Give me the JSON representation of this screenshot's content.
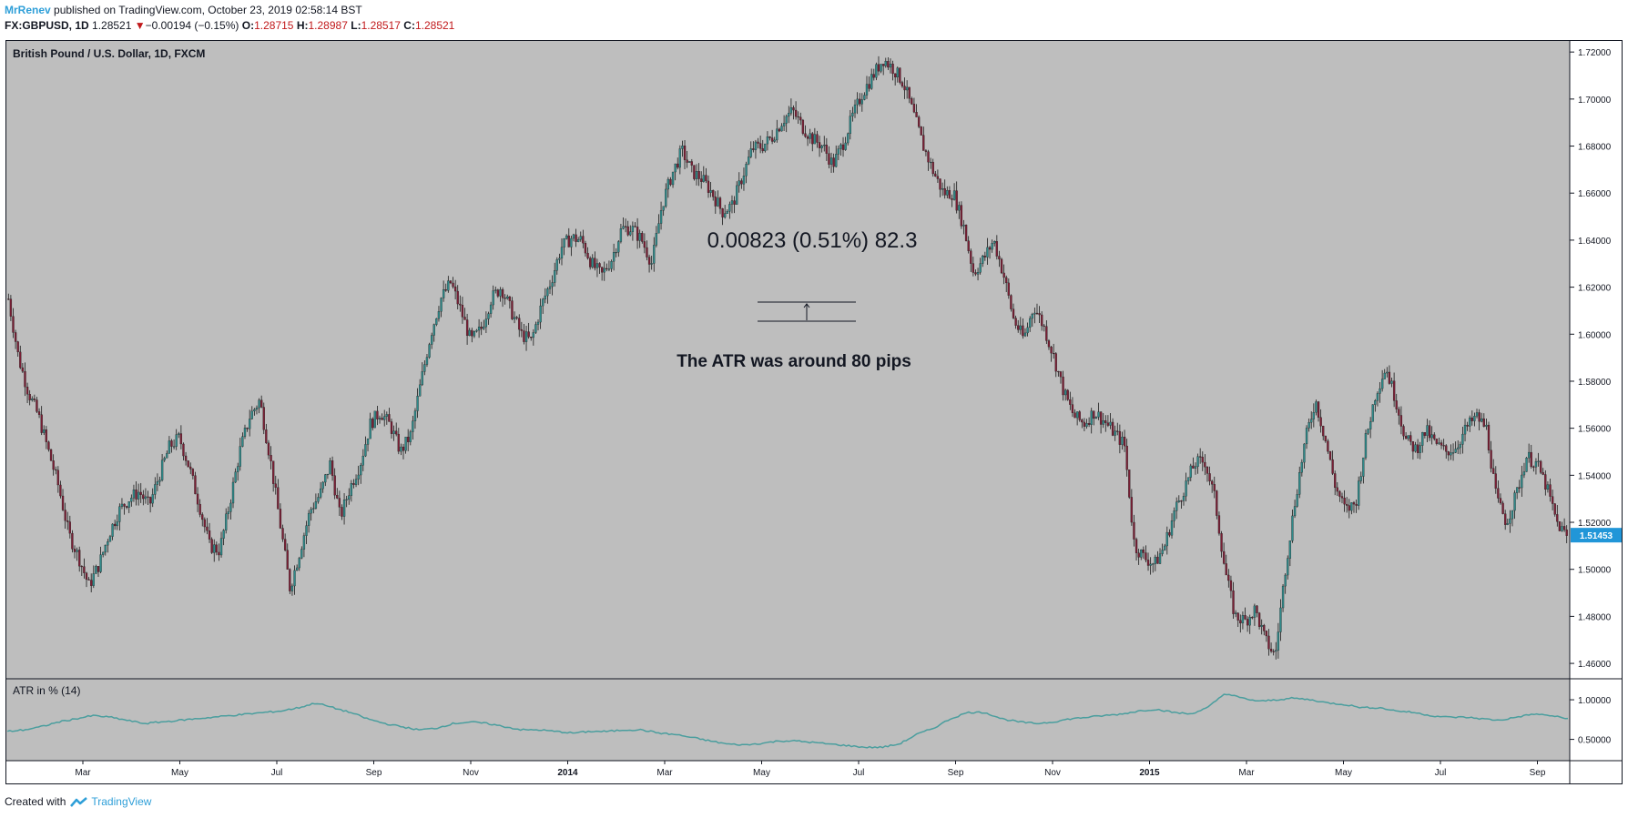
{
  "header": {
    "author": "MrRenev",
    "published": "published on TradingView.com, October 23, 2019 02:58:14 BST",
    "symbol": "FX:GBPUSD, 1D",
    "last": "1.28521",
    "change_arrow": "▼",
    "change": "−0.00194 (−0.15%)",
    "o_label": "O:",
    "o": "1.28715",
    "h_label": "H:",
    "h": "1.28987",
    "l_label": "L:",
    "l": "1.28517",
    "c_label": "C:",
    "c": "1.28521"
  },
  "footer": {
    "created_with": "Created with",
    "brand": "TradingView",
    "logo_icon": "tradingview-logo-icon"
  },
  "colors": {
    "pane_bg": "#bebebe",
    "up": "#2f8a8a",
    "down": "#7a1f35",
    "wick": "#1a1a1a",
    "atr": "#4a9e9e",
    "price_tag": "#2196d8"
  },
  "chart_data": [
    {
      "type": "candlestick",
      "title": "British Pound / U.S. Dollar, 1D, FXCM",
      "y_ticks": [
        "1.72000",
        "1.70000",
        "1.68000",
        "1.66000",
        "1.64000",
        "1.62000",
        "1.60000",
        "1.58000",
        "1.56000",
        "1.54000",
        "1.52000",
        "1.50000",
        "1.48000",
        "1.46000"
      ],
      "ylim": [
        1.455,
        1.722
      ],
      "last_price_label": "1.51453",
      "x_ticks": [
        "Mar",
        "May",
        "Jul",
        "Sep",
        "Nov",
        "2014",
        "Mar",
        "May",
        "Jul",
        "Sep",
        "Nov",
        "2015",
        "Mar",
        "May",
        "Jul",
        "Sep"
      ],
      "bold_ticks": [
        "2014",
        "2015"
      ],
      "series": [
        {
          "close": [
            1.615,
            1.59,
            1.575,
            1.565,
            1.55,
            1.535,
            1.515,
            1.505,
            1.493,
            1.502,
            1.515,
            1.525,
            1.53,
            1.533,
            1.527,
            1.54,
            1.552,
            1.556,
            1.543,
            1.527,
            1.51,
            1.508,
            1.528,
            1.55,
            1.565,
            1.572,
            1.548,
            1.52,
            1.492,
            1.508,
            1.525,
            1.532,
            1.545,
            1.522,
            1.535,
            1.545,
            1.562,
            1.567,
            1.561,
            1.55,
            1.557,
            1.579,
            1.6,
            1.615,
            1.622,
            1.61,
            1.597,
            1.602,
            1.615,
            1.62,
            1.61,
            1.6,
            1.597,
            1.612,
            1.623,
            1.637,
            1.641,
            1.64,
            1.63,
            1.625,
            1.632,
            1.645,
            1.645,
            1.64,
            1.63,
            1.655,
            1.668,
            1.678,
            1.669,
            1.666,
            1.66,
            1.652,
            1.655,
            1.667,
            1.679,
            1.68,
            1.684,
            1.691,
            1.695,
            1.688,
            1.683,
            1.68,
            1.672,
            1.681,
            1.693,
            1.703,
            1.71,
            1.717,
            1.713,
            1.707,
            1.694,
            1.68,
            1.669,
            1.66,
            1.66,
            1.646,
            1.626,
            1.632,
            1.64,
            1.625,
            1.606,
            1.598,
            1.612,
            1.603,
            1.59,
            1.575,
            1.565,
            1.562,
            1.567,
            1.563,
            1.558,
            1.553,
            1.51,
            1.505,
            1.502,
            1.51,
            1.525,
            1.535,
            1.545,
            1.546,
            1.53,
            1.5,
            1.48,
            1.478,
            1.483,
            1.47,
            1.463,
            1.5,
            1.53,
            1.555,
            1.572,
            1.555,
            1.535,
            1.525,
            1.528,
            1.555,
            1.575,
            1.586,
            1.572,
            1.555,
            1.551,
            1.559,
            1.553,
            1.55,
            1.552,
            1.56,
            1.565,
            1.56,
            1.53,
            1.52,
            1.532,
            1.548,
            1.545,
            1.535,
            1.52,
            1.514
          ]
        }
      ]
    },
    {
      "type": "line",
      "title": "ATR in % (14)",
      "y_ticks": [
        "1.00000",
        "0.50000"
      ],
      "ylim": [
        0.3,
        1.15
      ],
      "series": [
        {
          "name": "ATR in % (14)",
          "values": [
            0.6,
            0.62,
            0.66,
            0.72,
            0.76,
            0.8,
            0.78,
            0.74,
            0.7,
            0.72,
            0.74,
            0.76,
            0.78,
            0.8,
            0.82,
            0.84,
            0.86,
            0.9,
            0.96,
            0.9,
            0.84,
            0.76,
            0.7,
            0.66,
            0.62,
            0.64,
            0.7,
            0.72,
            0.7,
            0.66,
            0.62,
            0.62,
            0.6,
            0.58,
            0.6,
            0.6,
            0.62,
            0.62,
            0.58,
            0.56,
            0.52,
            0.48,
            0.44,
            0.43,
            0.45,
            0.48,
            0.48,
            0.46,
            0.44,
            0.42,
            0.4,
            0.4,
            0.44,
            0.56,
            0.64,
            0.76,
            0.84,
            0.84,
            0.76,
            0.72,
            0.7,
            0.72,
            0.76,
            0.78,
            0.8,
            0.82,
            0.86,
            0.88,
            0.84,
            0.82,
            0.9,
            1.08,
            1.02,
            0.98,
            1.0,
            1.02,
            1.0,
            0.96,
            0.94,
            0.9,
            0.9,
            0.86,
            0.84,
            0.8,
            0.78,
            0.78,
            0.76,
            0.74,
            0.78,
            0.82,
            0.8,
            0.76
          ]
        }
      ]
    }
  ],
  "annotations": {
    "measure": "0.00823 (0.51%) 82.3",
    "note": "The ATR was around 80 pips"
  }
}
